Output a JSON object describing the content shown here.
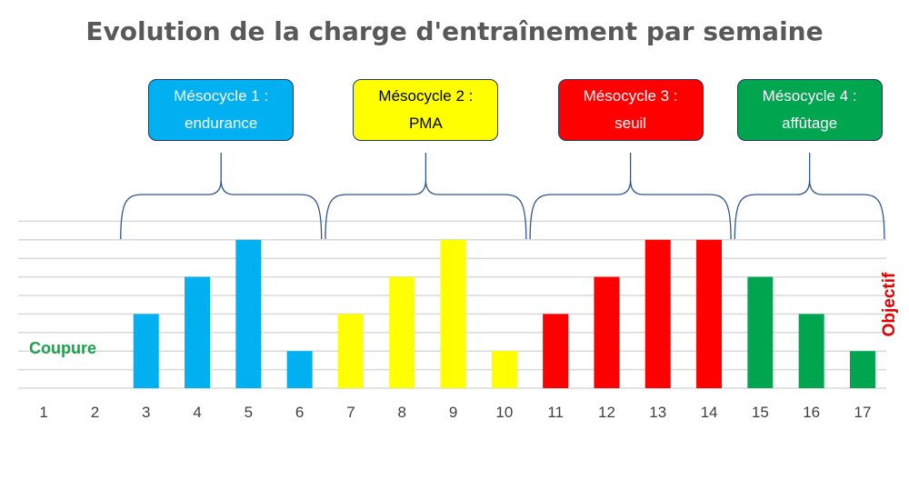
{
  "chart_data": {
    "type": "bar",
    "title": "Evolution de la charge d'entraînement par semaine",
    "xlabel": "",
    "ylabel": "",
    "categories": [
      "1",
      "2",
      "3",
      "4",
      "5",
      "6",
      "7",
      "8",
      "9",
      "10",
      "11",
      "12",
      "13",
      "14",
      "15",
      "16",
      "17"
    ],
    "values": [
      0,
      0,
      2,
      3,
      4,
      1,
      2,
      3,
      4,
      1,
      2,
      3,
      4,
      4,
      3,
      2,
      1
    ],
    "ylim": [
      0,
      4.5
    ],
    "grid": true,
    "legend": "none",
    "mesocycles": [
      {
        "line1": "Mésocycle 1 :",
        "line2": "endurance",
        "weeks": [
          3,
          6
        ],
        "color": "#00b0f0",
        "text_color": "#ffffff"
      },
      {
        "line1": "Mésocycle 2 :",
        "line2": "PMA",
        "weeks": [
          7,
          10
        ],
        "color": "#ffff00",
        "text_color": "#000000"
      },
      {
        "line1": "Mésocycle 3 :",
        "line2": "seuil",
        "weeks": [
          11,
          14
        ],
        "color": "#ff0000",
        "text_color": "#ffffff"
      },
      {
        "line1": "Mésocycle 4 :",
        "line2": "affûtage",
        "weeks": [
          15,
          17
        ],
        "color": "#00a550",
        "text_color": "#ffffff"
      }
    ],
    "annotations": {
      "coupure": "Coupure",
      "objectif": "Objectif"
    }
  },
  "colors": {
    "title": "#595959",
    "grid": "#d9d9d9",
    "brace": "#2f5597",
    "coupure": "#1aa34a",
    "objectif": "#e00000"
  }
}
